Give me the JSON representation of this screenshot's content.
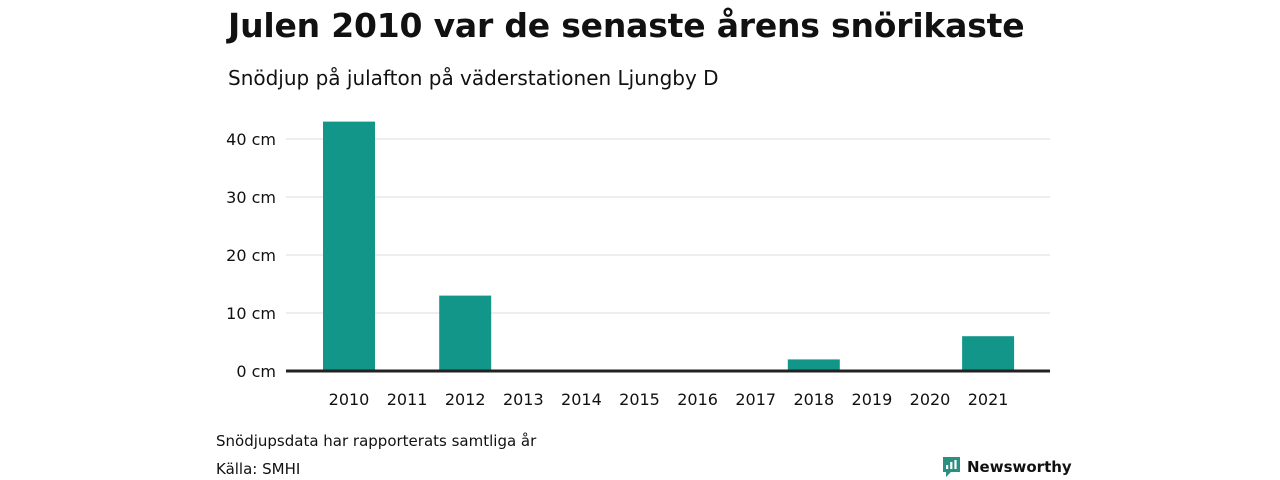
{
  "title": "Julen 2010 var de senaste årens snörikaste",
  "subtitle": "Snödjup på julafton på väderstationen Ljungby D",
  "footnote": "Snödjupsdata har rapporterats samtliga år",
  "source": "Källa: SMHI",
  "brand": {
    "name": "Newsworthy",
    "icon": "newsworthy-logo-icon",
    "color": "#2a9082"
  },
  "colors": {
    "bar": "#13968a",
    "grid": "#dddddd",
    "baseline": "#222222",
    "text": "#111111"
  },
  "chart_data": {
    "type": "bar",
    "title": "Julen 2010 var de senaste årens snörikaste",
    "subtitle": "Snödjup på julafton på väderstationen Ljungby D",
    "categories": [
      "2010",
      "2011",
      "2012",
      "2013",
      "2014",
      "2015",
      "2016",
      "2017",
      "2018",
      "2019",
      "2020",
      "2021"
    ],
    "values": [
      43,
      0,
      13,
      0,
      0,
      0,
      0,
      0,
      2,
      0,
      0,
      6
    ],
    "y_unit": "cm",
    "yticks": [
      0,
      10,
      20,
      30,
      40
    ],
    "ytick_labels": [
      "0 cm",
      "10 cm",
      "20 cm",
      "30 cm",
      "40 cm"
    ],
    "ylim": [
      0,
      45
    ],
    "grid": true,
    "legend": "none"
  }
}
